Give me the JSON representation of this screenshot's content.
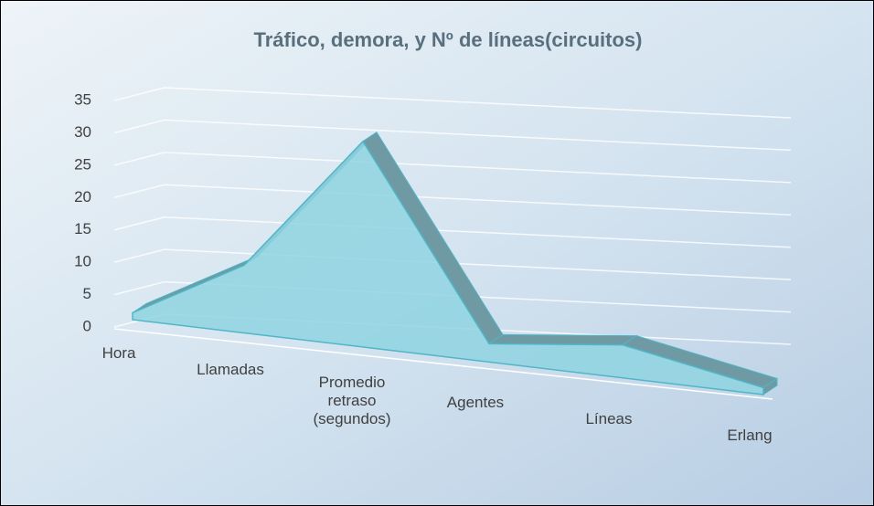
{
  "chart_data": {
    "type": "area3d",
    "title": "Tráfico, demora, y Nº de líneas(circuitos)",
    "categories": [
      "Hora",
      "Llamadas",
      "Promedio retraso (segundos)",
      "Agentes",
      "Líneas",
      "Erlang"
    ],
    "values": [
      1,
      10,
      30,
      3,
      5,
      1
    ],
    "color": "#8fd3e0",
    "ylim": [
      0,
      35
    ],
    "yticks": [
      0,
      5,
      10,
      15,
      20,
      25,
      30,
      35
    ],
    "grid": true
  }
}
